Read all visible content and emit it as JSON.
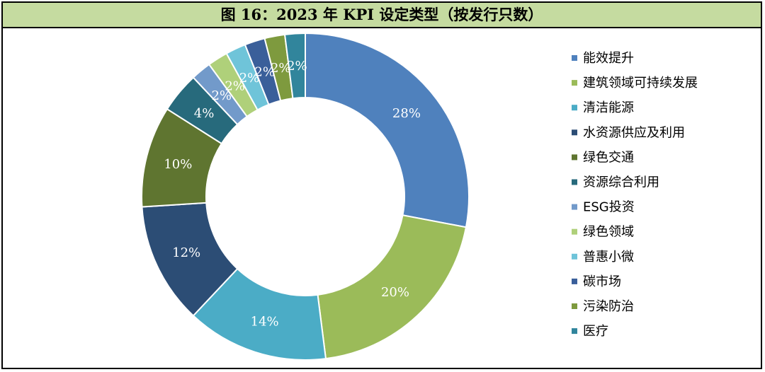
{
  "title": "图 16：2023 年 KPI 设定类型（按发行只数）",
  "chart_data": {
    "type": "pie",
    "style": "donut",
    "legend_position": "right",
    "categories": [
      "能效提升",
      "建筑领域可持续发展",
      "清洁能源",
      "水资源供应及利用",
      "绿色交通",
      "资源综合利用",
      "ESG投资",
      "绿色领域",
      "普惠小微",
      "碳市场",
      "污染防治",
      "医疗"
    ],
    "values": [
      28,
      20,
      14,
      12,
      10,
      4,
      2,
      2,
      2,
      2,
      2,
      2
    ],
    "labels": [
      "28%",
      "20%",
      "14%",
      "12%",
      "10%",
      "4%",
      "2%",
      "2%",
      "2%",
      "2%",
      "2%",
      "2%"
    ],
    "colors": [
      "#4f81bd",
      "#9bbb59",
      "#4bacc6",
      "#2c4d75",
      "#5f7530",
      "#276a7c",
      "#729aca",
      "#afd07a",
      "#6fc4d9",
      "#3a5f9a",
      "#7e9a3e",
      "#31859c"
    ]
  }
}
